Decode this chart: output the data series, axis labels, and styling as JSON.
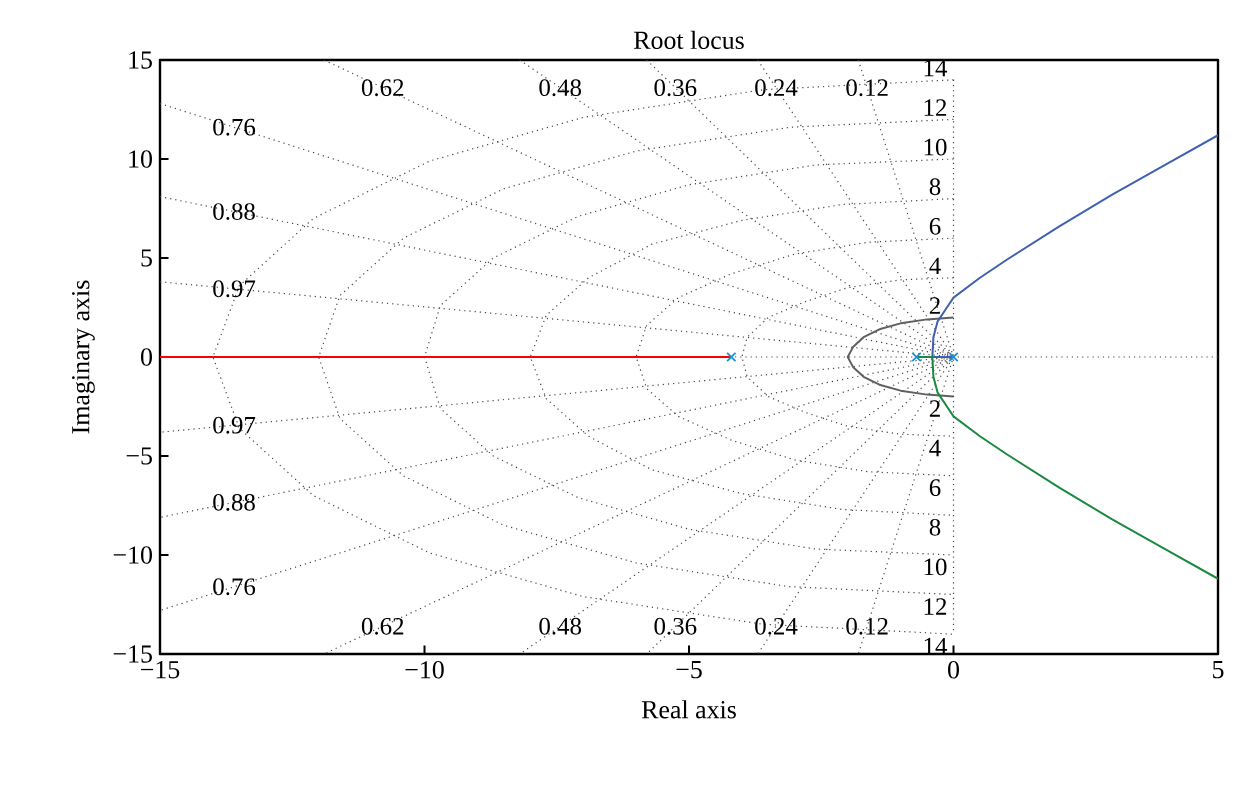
{
  "chart_data": {
    "type": "line",
    "title": "Root locus",
    "xlabel": "Real axis",
    "ylabel": "Imaginary axis",
    "xlim": [
      -15,
      5
    ],
    "ylim": [
      -15,
      15
    ],
    "xticks": [
      {
        "value": -15,
        "label": "−15"
      },
      {
        "value": -10,
        "label": "−10"
      },
      {
        "value": -5,
        "label": "−5"
      },
      0,
      5
    ],
    "yticks": [
      {
        "value": -15,
        "label": "−15"
      },
      {
        "value": -10,
        "label": "−10"
      },
      {
        "value": -5,
        "label": "−5"
      },
      0,
      5,
      10,
      15
    ],
    "ref_lines": [
      {
        "axis": "y",
        "value": 0,
        "color": "#444444",
        "line_style": "dotted"
      }
    ],
    "series": [
      {
        "color": "#444444",
        "line_style": "dotted",
        "x": [
          -1.8,
          0,
          -1.8
        ],
        "values": [
          15,
          0,
          -15
        ]
      },
      {
        "color": "#444444",
        "line_style": "dotted",
        "x": [
          -3.7,
          0,
          -3.7
        ],
        "values": [
          15,
          0,
          -15
        ]
      },
      {
        "color": "#444444",
        "line_style": "dotted",
        "x": [
          -5.8,
          0,
          -5.8
        ],
        "values": [
          15,
          0,
          -15
        ]
      },
      {
        "color": "#444444",
        "line_style": "dotted",
        "x": [
          -8.2,
          0,
          -8.2
        ],
        "values": [
          15,
          0,
          -15
        ]
      },
      {
        "color": "#444444",
        "line_style": "dotted",
        "x": [
          -11.9,
          0,
          -11.9
        ],
        "values": [
          15,
          0,
          -15
        ]
      },
      {
        "color": "#444444",
        "line_style": "dotted",
        "x": [
          -15,
          0,
          -15
        ],
        "values": [
          12.8,
          0,
          -12.8
        ]
      },
      {
        "color": "#444444",
        "line_style": "dotted",
        "x": [
          -15,
          0,
          -15
        ],
        "values": [
          8.1,
          0,
          -8.1
        ]
      },
      {
        "color": "#444444",
        "line_style": "dotted",
        "x": [
          -15,
          0,
          -15
        ],
        "values": [
          3.8,
          0,
          -3.8
        ]
      },
      {
        "color": "#444444",
        "line_style": "dotted",
        "x": [
          0,
          -1,
          -2,
          -2.8,
          -3.5,
          -3.9,
          -4,
          -3.9,
          -3.5,
          -2.8,
          -2,
          -1,
          0
        ],
        "values": [
          4,
          3.9,
          3.5,
          2.8,
          2,
          1,
          0,
          -1,
          -2,
          -2.8,
          -3.5,
          -3.9,
          -4
        ]
      },
      {
        "color": "#444444",
        "line_style": "dotted",
        "x": [
          0,
          -1.6,
          -3,
          -4.2,
          -5.2,
          -5.8,
          -6,
          -5.8,
          -5.2,
          -4.2,
          -3,
          -1.6,
          0
        ],
        "values": [
          6,
          5.8,
          5.2,
          4.2,
          3,
          1.6,
          0,
          -1.6,
          -3,
          -4.2,
          -5.2,
          -5.8,
          -6
        ]
      },
      {
        "color": "#444444",
        "line_style": "dotted",
        "x": [
          0,
          -2.1,
          -4,
          -5.7,
          -6.9,
          -7.7,
          -8,
          -7.7,
          -6.9,
          -5.7,
          -4,
          -2.1,
          0
        ],
        "values": [
          8,
          7.7,
          6.9,
          5.7,
          4,
          2.1,
          0,
          -2.1,
          -4,
          -5.7,
          -6.9,
          -7.7,
          -8
        ]
      },
      {
        "color": "#444444",
        "line_style": "dotted",
        "x": [
          0,
          -2.6,
          -5,
          -7.1,
          -8.7,
          -9.7,
          -10,
          -9.7,
          -8.7,
          -7.1,
          -5,
          -2.6,
          0
        ],
        "values": [
          10,
          9.7,
          8.7,
          7.1,
          5,
          2.6,
          0,
          -2.6,
          -5,
          -7.1,
          -8.7,
          -9.7,
          -10
        ]
      },
      {
        "color": "#444444",
        "line_style": "dotted",
        "x": [
          0,
          -3.1,
          -6,
          -8.5,
          -10.4,
          -11.6,
          -12,
          -11.6,
          -10.4,
          -8.5,
          -6,
          -3.1,
          0
        ],
        "values": [
          12,
          11.6,
          10.4,
          8.5,
          6,
          3.1,
          0,
          -3.1,
          -6,
          -8.5,
          -10.4,
          -11.6,
          -12
        ]
      },
      {
        "color": "#444444",
        "line_style": "dotted",
        "x": [
          0,
          -3.6,
          -7,
          -9.9,
          -12.1,
          -13.5,
          -14,
          -13.5,
          -12.1,
          -9.9,
          -7,
          -3.6,
          0
        ],
        "values": [
          14,
          13.5,
          12.1,
          9.9,
          7,
          3.6,
          0,
          -3.6,
          -7,
          -9.9,
          -12.1,
          -13.5,
          -14
        ]
      },
      {
        "color": "#606060",
        "line_style": "solid",
        "x": [
          0,
          -0.5,
          -1,
          -1.4,
          -1.7,
          -1.9,
          -2,
          -1.9,
          -1.7,
          -1.4,
          -1,
          -0.5,
          0
        ],
        "values": [
          2,
          1.9,
          1.7,
          1.4,
          1,
          0.5,
          0,
          -0.5,
          -1,
          -1.4,
          -1.7,
          -1.9,
          -2
        ]
      },
      {
        "color": "#444444",
        "line_style": "dotted",
        "x": [
          0,
          0
        ],
        "values": [
          14,
          -14
        ]
      },
      {
        "color": "#ff0000",
        "line_style": "solid",
        "x": [
          -4.2,
          -15
        ],
        "values": [
          0,
          0
        ]
      },
      {
        "color": "#4060b0",
        "line_style": "solid",
        "x": [
          0,
          -0.4,
          -0.38,
          -0.3,
          -0.1,
          0,
          0.5,
          1,
          2,
          3,
          4,
          5
        ],
        "values": [
          0,
          0,
          1,
          1.8,
          2.6,
          3,
          4,
          4.9,
          6.6,
          8.2,
          9.7,
          11.2
        ]
      },
      {
        "color": "#1a8a40",
        "line_style": "solid",
        "x": [
          -0.7,
          -0.4,
          -0.38,
          -0.3,
          -0.1,
          0,
          0.5,
          1,
          2,
          3,
          4,
          5
        ],
        "values": [
          0,
          0,
          -1,
          -1.8,
          -2.6,
          -3,
          -4,
          -4.9,
          -6.6,
          -8.2,
          -9.7,
          -11.2
        ]
      },
      {
        "type": "scatter",
        "color": "#1f8fd0",
        "marker": "cross",
        "x": [
          -4.2,
          -0.7,
          0
        ],
        "values": [
          0,
          0,
          0
        ]
      }
    ],
    "annotations": [
      "0.12",
      "0.12",
      "0.24",
      "0.24",
      "0.36",
      "0.36",
      "0.48",
      "0.48",
      "0.62",
      "0.62",
      "0.76",
      "0.76",
      "0.88",
      "0.88",
      "0.97",
      "0.97",
      "4",
      "4",
      "6",
      "6",
      "8",
      "8",
      "10",
      "10",
      "12",
      "12",
      "14",
      "14",
      "2",
      "2"
    ]
  }
}
